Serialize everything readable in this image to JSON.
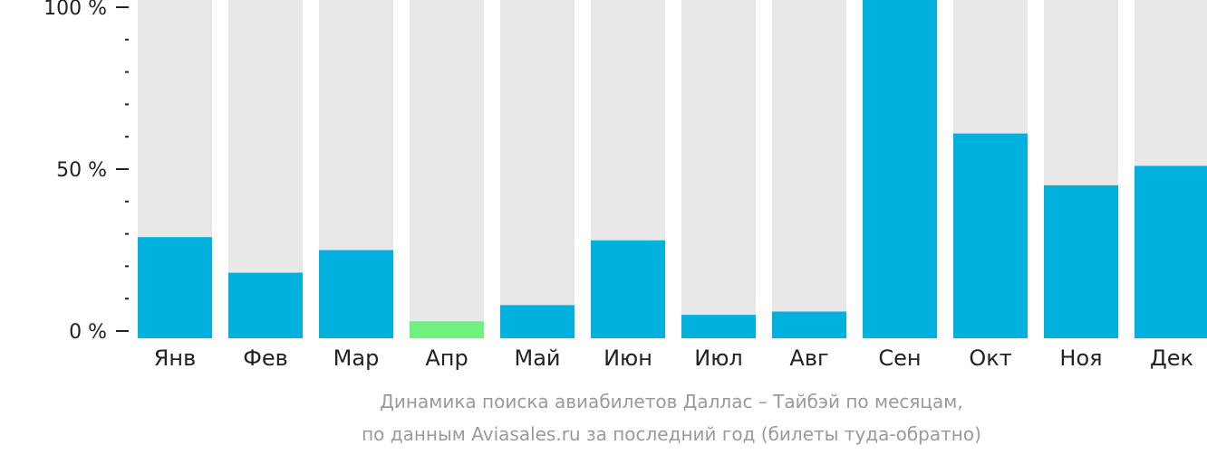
{
  "chart_data": {
    "type": "bar",
    "categories": [
      "Янв",
      "Фев",
      "Мар",
      "Апр",
      "Май",
      "Июн",
      "Июл",
      "Авг",
      "Сен",
      "Окт",
      "Ноя",
      "Дек"
    ],
    "values": [
      29,
      18,
      25,
      3,
      8,
      28,
      5,
      6,
      100,
      61,
      45,
      51
    ],
    "ylim": [
      0,
      100
    ],
    "yticks": [
      {
        "value": 0,
        "label": "0 %"
      },
      {
        "value": 50,
        "label": "50 %"
      },
      {
        "value": 100,
        "label": "100 %"
      }
    ],
    "yminor_step": 10,
    "highlight_index": 3,
    "colors": {
      "bar": "#00b0dd",
      "highlight": "#6ef17e",
      "track": "#e8e8e8",
      "axis": "#222222"
    }
  },
  "caption": {
    "line1": "Динамика поиска авиабилетов Даллас – Тайбэй по месяцам,",
    "line2": "по данным Aviasales.ru за последний год (билеты туда-обратно)"
  }
}
